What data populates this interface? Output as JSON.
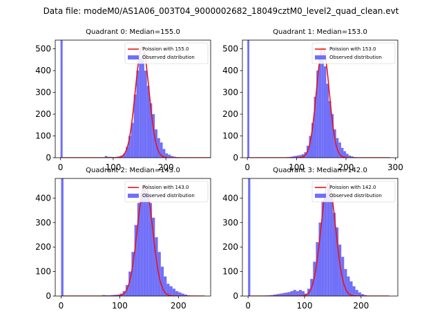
{
  "figure": {
    "suptitle": "Data file: modeM0/AS1A06_003T04_9000002682_18049cztM0_level2_quad_clean.evt"
  },
  "colors": {
    "hist": "#7070f8",
    "fit": "#ee1111",
    "axis": "#000000"
  },
  "chart_data": [
    {
      "type": "bar",
      "title": "Quadrant 0: Median=155.0",
      "median": 155.0,
      "legend": [
        "Poission with 155.0",
        "Observed distribution"
      ],
      "legend_position": "top-right",
      "xlim": [
        -10,
        285
      ],
      "ylim": [
        0,
        540
      ],
      "xticks": [
        0,
        100,
        200
      ],
      "yticks": [
        0,
        100,
        200,
        300,
        400,
        500
      ],
      "spike": {
        "x": [
          0,
          4
        ],
        "height": 540
      },
      "bins": [
        [
          84,
          89,
          8
        ],
        [
          89,
          94,
          4
        ],
        [
          94,
          99,
          4
        ],
        [
          99,
          104,
          2
        ],
        [
          104,
          109,
          4
        ],
        [
          109,
          114,
          6
        ],
        [
          114,
          119,
          10
        ],
        [
          119,
          124,
          20
        ],
        [
          124,
          129,
          50
        ],
        [
          129,
          134,
          100
        ],
        [
          134,
          139,
          160
        ],
        [
          139,
          144,
          290
        ],
        [
          144,
          149,
          400
        ],
        [
          149,
          154,
          460
        ],
        [
          154,
          159,
          480
        ],
        [
          159,
          164,
          400
        ],
        [
          164,
          169,
          330
        ],
        [
          169,
          174,
          250
        ],
        [
          174,
          179,
          200
        ],
        [
          179,
          184,
          130
        ],
        [
          184,
          189,
          90
        ],
        [
          189,
          194,
          70
        ],
        [
          194,
          199,
          40
        ],
        [
          199,
          204,
          20
        ],
        [
          204,
          209,
          14
        ],
        [
          209,
          214,
          8
        ],
        [
          214,
          219,
          5
        ],
        [
          219,
          224,
          3
        ],
        [
          224,
          229,
          2
        ],
        [
          229,
          234,
          1
        ]
      ],
      "fit": {
        "mean": 155,
        "sd": 13,
        "peak": 510,
        "x_from": 0,
        "x_to": 285
      }
    },
    {
      "type": "bar",
      "title": "Quadrant 1: Median=153.0",
      "median": 153.0,
      "legend": [
        "Poission with 153.0",
        "Observed distribution"
      ],
      "legend_position": "top-right",
      "xlim": [
        -10,
        305
      ],
      "ylim": [
        0,
        540
      ],
      "xticks": [
        0,
        100,
        200,
        300
      ],
      "yticks": [
        0,
        100,
        200,
        300,
        400,
        500
      ],
      "spike": {
        "x": [
          0,
          4
        ],
        "height": 540
      },
      "bins": [
        [
          80,
          85,
          3
        ],
        [
          85,
          90,
          4
        ],
        [
          90,
          95,
          6
        ],
        [
          95,
          100,
          8
        ],
        [
          100,
          105,
          10
        ],
        [
          105,
          110,
          12
        ],
        [
          110,
          115,
          16
        ],
        [
          115,
          120,
          25
        ],
        [
          120,
          125,
          55
        ],
        [
          125,
          130,
          100
        ],
        [
          130,
          135,
          160
        ],
        [
          135,
          140,
          280
        ],
        [
          140,
          145,
          400
        ],
        [
          145,
          150,
          470
        ],
        [
          150,
          155,
          480
        ],
        [
          155,
          160,
          420
        ],
        [
          160,
          165,
          340
        ],
        [
          165,
          170,
          260
        ],
        [
          170,
          175,
          200
        ],
        [
          175,
          180,
          130
        ],
        [
          180,
          185,
          90
        ],
        [
          185,
          190,
          70
        ],
        [
          190,
          195,
          45
        ],
        [
          195,
          200,
          30
        ],
        [
          200,
          205,
          18
        ],
        [
          205,
          210,
          10
        ],
        [
          210,
          215,
          6
        ],
        [
          215,
          220,
          3
        ],
        [
          220,
          225,
          2
        ]
      ],
      "fit": {
        "mean": 153,
        "sd": 13,
        "peak": 505,
        "x_from": 0,
        "x_to": 290
      }
    },
    {
      "type": "bar",
      "title": "Quadrant 2: Median=143.0",
      "median": 143.0,
      "legend": [
        "Poission with 143.0",
        "Observed distribution"
      ],
      "legend_position": "top-right",
      "xlim": [
        -10,
        255
      ],
      "ylim": [
        0,
        480
      ],
      "xticks": [
        0,
        100,
        200
      ],
      "yticks": [
        0,
        100,
        200,
        300,
        400
      ],
      "spike": {
        "x": [
          0,
          4
        ],
        "height": 480
      },
      "bins": [
        [
          70,
          75,
          4
        ],
        [
          75,
          80,
          3
        ],
        [
          80,
          85,
          3
        ],
        [
          85,
          90,
          4
        ],
        [
          90,
          95,
          5
        ],
        [
          95,
          100,
          6
        ],
        [
          100,
          105,
          10
        ],
        [
          105,
          110,
          20
        ],
        [
          110,
          115,
          45
        ],
        [
          115,
          120,
          100
        ],
        [
          120,
          125,
          180
        ],
        [
          125,
          130,
          290
        ],
        [
          130,
          135,
          380
        ],
        [
          135,
          140,
          420
        ],
        [
          140,
          145,
          450
        ],
        [
          145,
          150,
          420
        ],
        [
          150,
          155,
          380
        ],
        [
          155,
          160,
          320
        ],
        [
          160,
          165,
          240
        ],
        [
          165,
          170,
          180
        ],
        [
          170,
          175,
          120
        ],
        [
          175,
          180,
          80
        ],
        [
          180,
          185,
          50
        ],
        [
          185,
          190,
          40
        ],
        [
          190,
          195,
          30
        ],
        [
          195,
          200,
          20
        ],
        [
          200,
          205,
          15
        ],
        [
          205,
          210,
          10
        ],
        [
          210,
          215,
          6
        ],
        [
          215,
          220,
          3
        ],
        [
          220,
          225,
          2
        ]
      ],
      "fit": {
        "mean": 143,
        "sd": 13,
        "peak": 455,
        "x_from": 0,
        "x_to": 245
      }
    },
    {
      "type": "bar",
      "title": "Quadrant 3: Median=142.0",
      "median": 142.0,
      "legend": [
        "Poission with 142.0",
        "Observed distribution"
      ],
      "legend_position": "top-right",
      "xlim": [
        -10,
        265
      ],
      "ylim": [
        0,
        480
      ],
      "xticks": [
        0,
        100,
        200
      ],
      "yticks": [
        0,
        100,
        200,
        300,
        400
      ],
      "spike": {
        "x": [
          0,
          4
        ],
        "height": 480
      },
      "bins": [
        [
          30,
          35,
          2
        ],
        [
          35,
          40,
          3
        ],
        [
          40,
          45,
          4
        ],
        [
          45,
          50,
          6
        ],
        [
          50,
          55,
          8
        ],
        [
          55,
          60,
          10
        ],
        [
          60,
          65,
          12
        ],
        [
          65,
          70,
          14
        ],
        [
          70,
          75,
          16
        ],
        [
          75,
          80,
          20
        ],
        [
          80,
          85,
          25
        ],
        [
          85,
          90,
          20
        ],
        [
          90,
          95,
          25
        ],
        [
          95,
          100,
          20
        ],
        [
          100,
          105,
          10
        ],
        [
          105,
          110,
          30
        ],
        [
          110,
          115,
          70
        ],
        [
          115,
          120,
          140
        ],
        [
          120,
          125,
          220
        ],
        [
          125,
          130,
          300
        ],
        [
          130,
          135,
          390
        ],
        [
          135,
          140,
          420
        ],
        [
          140,
          145,
          440
        ],
        [
          145,
          150,
          400
        ],
        [
          150,
          155,
          340
        ],
        [
          155,
          160,
          280
        ],
        [
          160,
          165,
          210
        ],
        [
          165,
          170,
          160
        ],
        [
          170,
          175,
          110
        ],
        [
          175,
          180,
          80
        ],
        [
          180,
          185,
          60
        ],
        [
          185,
          190,
          40
        ],
        [
          190,
          195,
          25
        ],
        [
          195,
          200,
          15
        ],
        [
          200,
          205,
          8
        ],
        [
          205,
          210,
          4
        ]
      ],
      "fit": {
        "mean": 142,
        "sd": 13,
        "peak": 460,
        "x_from": 0,
        "x_to": 250
      }
    }
  ]
}
